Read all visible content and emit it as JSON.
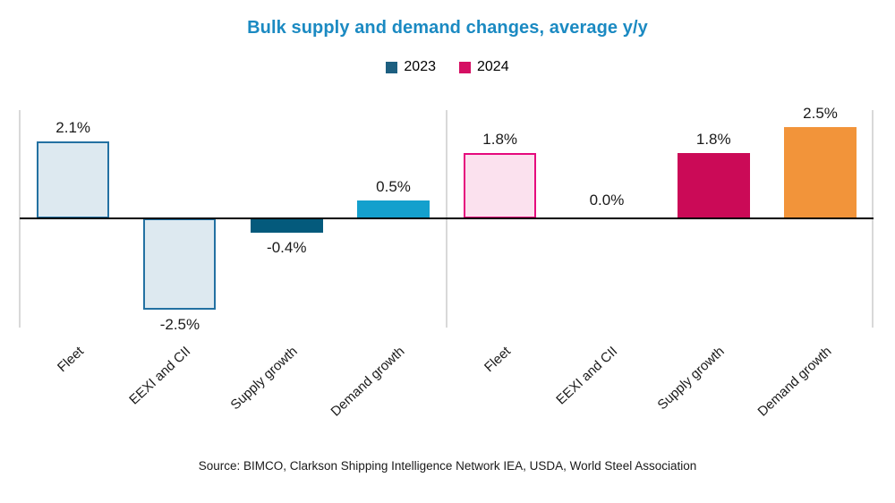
{
  "title": "Bulk supply and demand changes, average y/y",
  "title_color": "#1b8ac2",
  "legend": {
    "items": [
      {
        "label": "2023",
        "color": "#1d5f80"
      },
      {
        "label": "2024",
        "color": "#d50f63"
      }
    ]
  },
  "source": "Source: BIMCO, Clarkson Shipping Intelligence Network IEA, USDA, World Steel Association",
  "colors": {
    "axis_line": "#000000",
    "panel_guide_line": "#d9d9d9",
    "light_blue_fill": "#dde9f0",
    "blue_outline": "#2371a2",
    "dark_teal": "#045a7c",
    "cyan": "#14a0cd",
    "pale_pink_fill": "#fbe1ee",
    "pink_outline": "#e5097d",
    "magenta": "#cb0a57",
    "orange": "#f2943a"
  },
  "chart_data": {
    "type": "bar",
    "categories": [
      "Fleet",
      "EEXI and CII",
      "Supply growth",
      "Demand growth"
    ],
    "series": [
      {
        "name": "2023",
        "values": [
          2.1,
          -2.5,
          -0.4,
          0.5
        ],
        "labels": [
          "2.1%",
          "-2.5%",
          "-0.4%",
          "0.5%"
        ],
        "bar_styles": [
          {
            "fill": "#dde9f0",
            "border": "#2371a2"
          },
          {
            "fill": "#dde9f0",
            "border": "#2371a2"
          },
          {
            "fill": "#045a7c",
            "border": null
          },
          {
            "fill": "#14a0cd",
            "border": null
          }
        ]
      },
      {
        "name": "2024",
        "values": [
          1.8,
          0.0,
          1.8,
          2.5
        ],
        "labels": [
          "1.8%",
          "0.0%",
          "1.8%",
          "2.5%"
        ],
        "bar_styles": [
          {
            "fill": "#fbe1ee",
            "border": "#e5097d"
          },
          null,
          {
            "fill": "#cb0a57",
            "border": null
          },
          {
            "fill": "#f2943a",
            "border": null
          }
        ]
      }
    ],
    "title": "Bulk supply and demand changes, average y/y",
    "xlabel": "",
    "ylabel": "",
    "ylim": [
      -3,
      3
    ],
    "grid": "off",
    "legend_position": "top",
    "value_label_format": "x.x%",
    "panels": "one panel per series, side by side, separated by light gray vertical guide lines"
  }
}
